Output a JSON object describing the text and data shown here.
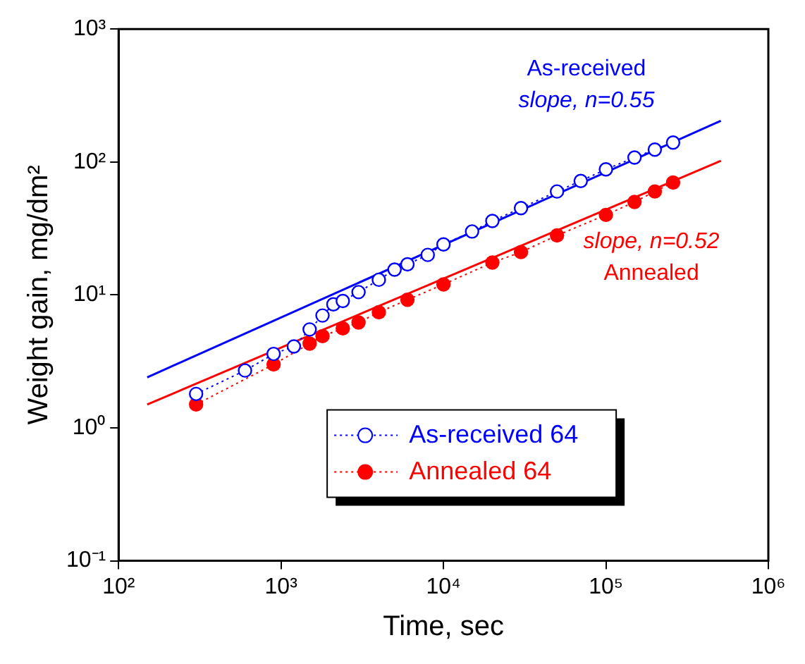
{
  "chart_data": {
    "type": "line",
    "xlabel": "Time, sec",
    "ylabel": "Weight gain, mg/dm²",
    "log": "xy",
    "grid": false,
    "legend": "bottom",
    "marker": "circle",
    "line_style": "dotted",
    "xlim": [
      100,
      1000000
    ],
    "xticks": [
      {
        "value": 100,
        "label": "10²"
      },
      {
        "value": 1000,
        "label": "10³"
      },
      {
        "value": 10000,
        "label": "10⁴"
      },
      {
        "value": 100000,
        "label": "10⁵"
      },
      {
        "value": 1000000,
        "label": "10⁶"
      }
    ],
    "ylim": [
      0.1,
      1000
    ],
    "yticks": [
      {
        "value": 0.1,
        "label": "10⁻¹"
      },
      {
        "value": 1,
        "label": "10⁰"
      },
      {
        "value": 10,
        "label": "10¹"
      },
      {
        "value": 100,
        "label": "10²"
      },
      {
        "value": 1000,
        "label": "10³"
      }
    ],
    "series": [
      {
        "name": "As-received 64",
        "color": "#0000ff",
        "x": [
          300,
          600,
          900,
          1200,
          1500,
          1800,
          2100,
          2400,
          3000,
          4000,
          5000,
          6000,
          8000,
          10000,
          15000,
          20000,
          30000,
          50000,
          70000,
          100000,
          150000,
          200000,
          259200
        ],
        "values": [
          1.8,
          2.7,
          3.6,
          4.1,
          5.5,
          7.0,
          8.5,
          9.0,
          10.5,
          13,
          15.5,
          17,
          20,
          24,
          30,
          36,
          45,
          60,
          72,
          88,
          108,
          124,
          140
        ]
      },
      {
        "name": "Annealed 64",
        "color": "#ff0000",
        "x": [
          300,
          900,
          1500,
          1800,
          2400,
          3000,
          4000,
          6000,
          10000,
          20000,
          30000,
          50000,
          100000,
          150000,
          200000,
          259200
        ],
        "values": [
          1.5,
          3.0,
          4.3,
          4.9,
          5.6,
          6.2,
          7.4,
          9.2,
          12,
          17.5,
          21,
          28,
          40,
          50,
          60,
          70
        ]
      },
      {
        "type": "line",
        "color": "#0000ff",
        "marker": "none",
        "line_style": "solid",
        "x": [
          150,
          510000
        ],
        "values": [
          2.4,
          204
        ]
      },
      {
        "type": "line",
        "color": "#ff0000",
        "marker": "none",
        "line_style": "solid",
        "x": [
          150,
          510000
        ],
        "values": [
          1.5,
          102
        ]
      }
    ],
    "annotations": [
      "As-received",
      "slope, n=0.55",
      "slope, n=0.52",
      "Annealed"
    ]
  }
}
